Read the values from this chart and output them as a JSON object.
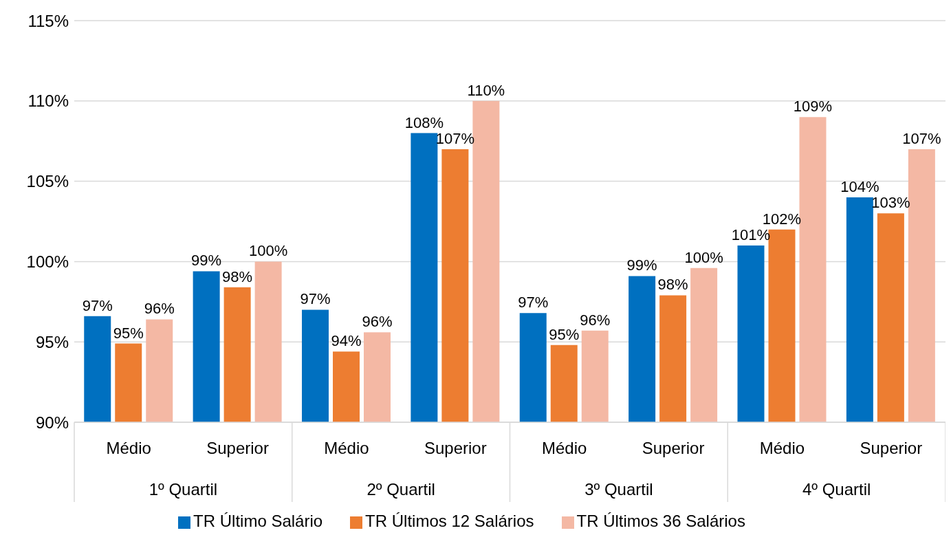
{
  "chart_data": {
    "type": "bar",
    "categories": [
      "Médio",
      "Superior",
      "Médio",
      "Superior",
      "Médio",
      "Superior",
      "Médio",
      "Superior"
    ],
    "annotations": [
      "1º Quartil",
      "2º Quartil",
      "3º Quartil",
      "4º Quartil"
    ],
    "series": [
      {
        "name": "TR Último Salário",
        "color": "#0070c0",
        "values": [
          96.6,
          99.4,
          97.0,
          108.0,
          96.8,
          99.1,
          101.0,
          104.0
        ],
        "value_labels": [
          "97%",
          "99%",
          "97%",
          "108%",
          "97%",
          "99%",
          "101%",
          "104%"
        ]
      },
      {
        "name": "TR Últimos 12 Salários",
        "color": "#ed7d31",
        "values": [
          94.9,
          98.4,
          94.4,
          107.0,
          94.8,
          97.9,
          102.0,
          103.0
        ],
        "value_labels": [
          "95%",
          "98%",
          "94%",
          "107%",
          "95%",
          "98%",
          "102%",
          "103%"
        ]
      },
      {
        "name": "TR Últimos 36 Salários",
        "color": "#f4b8a4",
        "values": [
          96.4,
          100.0,
          95.6,
          110.0,
          95.7,
          99.6,
          109.0,
          107.0
        ],
        "value_labels": [
          "96%",
          "100%",
          "96%",
          "110%",
          "96%",
          "100%",
          "109%",
          "107%"
        ]
      }
    ],
    "ylim": [
      90,
      115
    ],
    "yticks": [
      {
        "value": 90,
        "label": "90%"
      },
      {
        "value": 95,
        "label": "95%"
      },
      {
        "value": 100,
        "label": "100%"
      },
      {
        "value": 105,
        "label": "105%"
      },
      {
        "value": 110,
        "label": "110%"
      },
      {
        "value": 115,
        "label": "115%"
      }
    ],
    "grid": "y",
    "legend": "bottom"
  }
}
